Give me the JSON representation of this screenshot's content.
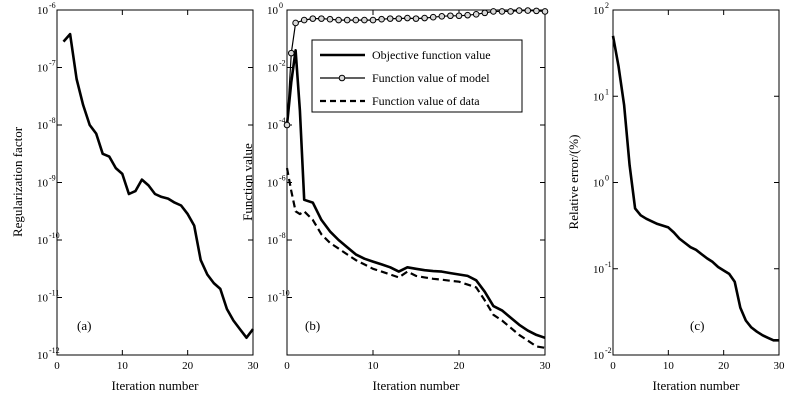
{
  "chart_data": [
    {
      "type": "line",
      "panel": "(a)",
      "xlabel": "Iteration number",
      "ylabel": "Regularization factor",
      "yscale": "log",
      "xlim": [
        0,
        30
      ],
      "ylim_exp": [
        -12,
        -6
      ],
      "xticks": [
        0,
        10,
        20,
        30
      ],
      "yticks_exp": [
        -12,
        -11,
        -10,
        -9,
        -8,
        -7,
        -6
      ],
      "series": [
        {
          "name": "Regularization factor",
          "style": "solid-thick",
          "x": [
            1,
            2,
            3,
            4,
            5,
            6,
            7,
            8,
            9,
            10,
            11,
            12,
            13,
            14,
            15,
            16,
            17,
            18,
            19,
            20,
            21,
            22,
            23,
            24,
            25,
            26,
            27,
            28,
            29,
            30
          ],
          "log_y": [
            -6.55,
            -6.42,
            -7.2,
            -7.65,
            -8.0,
            -8.15,
            -8.5,
            -8.55,
            -8.75,
            -8.85,
            -9.2,
            -9.15,
            -8.95,
            -9.05,
            -9.2,
            -9.25,
            -9.28,
            -9.35,
            -9.4,
            -9.55,
            -9.75,
            -10.35,
            -10.6,
            -10.75,
            -10.85,
            -11.2,
            -11.4,
            -11.55,
            -11.7,
            -11.55
          ]
        }
      ]
    },
    {
      "type": "line",
      "panel": "(b)",
      "xlabel": "Iteration number",
      "ylabel": "Function value",
      "yscale": "log",
      "xlim": [
        0,
        30
      ],
      "ylim_exp": [
        -12,
        0
      ],
      "xticks": [
        0,
        10,
        20,
        30
      ],
      "yticks_exp": [
        -10,
        -8,
        -6,
        -4,
        -2,
        0
      ],
      "legend_position": "top-right",
      "series": [
        {
          "name": "Objective function value",
          "style": "solid-thick",
          "x": [
            0,
            0.5,
            1,
            1.5,
            2,
            3,
            4,
            5,
            6,
            7,
            8,
            9,
            10,
            11,
            12,
            13,
            14,
            15,
            16,
            17,
            18,
            19,
            20,
            21,
            22,
            23,
            24,
            25,
            26,
            27,
            28,
            29,
            30
          ],
          "log_y": [
            -4.0,
            -2.5,
            -1.4,
            -3.5,
            -6.6,
            -6.7,
            -7.3,
            -7.7,
            -8.0,
            -8.25,
            -8.5,
            -8.65,
            -8.75,
            -8.85,
            -8.95,
            -9.1,
            -8.95,
            -9.0,
            -9.05,
            -9.08,
            -9.1,
            -9.15,
            -9.2,
            -9.25,
            -9.4,
            -9.8,
            -10.3,
            -10.45,
            -10.7,
            -10.95,
            -11.15,
            -11.3,
            -11.4
          ]
        },
        {
          "name": "Function value of model",
          "style": "solid-thin-markers",
          "x": [
            0,
            0.5,
            1,
            2,
            3,
            4,
            5,
            6,
            7,
            8,
            9,
            10,
            11,
            12,
            13,
            14,
            15,
            16,
            17,
            18,
            19,
            20,
            21,
            22,
            23,
            24,
            25,
            26,
            27,
            28,
            29,
            30
          ],
          "log_y": [
            -4.0,
            -1.5,
            -0.45,
            -0.35,
            -0.3,
            -0.3,
            -0.32,
            -0.35,
            -0.35,
            -0.35,
            -0.35,
            -0.35,
            -0.32,
            -0.3,
            -0.3,
            -0.28,
            -0.3,
            -0.28,
            -0.25,
            -0.22,
            -0.2,
            -0.2,
            -0.18,
            -0.15,
            -0.1,
            -0.05,
            -0.05,
            -0.05,
            -0.02,
            -0.02,
            -0.03,
            -0.05
          ]
        },
        {
          "name": "Function value of data",
          "style": "dashed-thick",
          "x": [
            0,
            0.5,
            1,
            1.5,
            2,
            3,
            4,
            5,
            6,
            7,
            8,
            9,
            10,
            11,
            12,
            13,
            14,
            15,
            16,
            17,
            18,
            19,
            20,
            21,
            22,
            23,
            24,
            25,
            26,
            27,
            28,
            29,
            30
          ],
          "log_y": [
            -5.5,
            -6.3,
            -7.0,
            -7.1,
            -7.0,
            -7.3,
            -7.8,
            -8.1,
            -8.3,
            -8.5,
            -8.7,
            -8.85,
            -9.0,
            -9.1,
            -9.2,
            -9.3,
            -9.1,
            -9.25,
            -9.3,
            -9.35,
            -9.38,
            -9.42,
            -9.45,
            -9.55,
            -9.65,
            -10.1,
            -10.6,
            -10.8,
            -11.05,
            -11.3,
            -11.5,
            -11.7,
            -11.75
          ]
        }
      ]
    },
    {
      "type": "line",
      "panel": "(c)",
      "xlabel": "Iteration number",
      "ylabel": "Relative error/(%)",
      "yscale": "log",
      "xlim": [
        0,
        30
      ],
      "ylim_exp": [
        -2,
        2
      ],
      "xticks": [
        0,
        10,
        20,
        30
      ],
      "yticks_exp": [
        -2,
        -1,
        0,
        1,
        2
      ],
      "series": [
        {
          "name": "Relative error",
          "style": "solid-thick",
          "x": [
            0,
            1,
            2,
            3,
            4,
            5,
            6,
            7,
            8,
            9,
            10,
            11,
            12,
            13,
            14,
            15,
            16,
            17,
            18,
            19,
            20,
            21,
            22,
            23,
            24,
            25,
            26,
            27,
            28,
            29,
            30
          ],
          "log_y": [
            1.7,
            1.35,
            0.9,
            0.2,
            -0.3,
            -0.38,
            -0.42,
            -0.45,
            -0.48,
            -0.5,
            -0.52,
            -0.58,
            -0.65,
            -0.7,
            -0.75,
            -0.78,
            -0.83,
            -0.88,
            -0.92,
            -0.98,
            -1.02,
            -1.06,
            -1.15,
            -1.45,
            -1.6,
            -1.68,
            -1.73,
            -1.77,
            -1.8,
            -1.83,
            -1.83
          ]
        }
      ]
    }
  ]
}
